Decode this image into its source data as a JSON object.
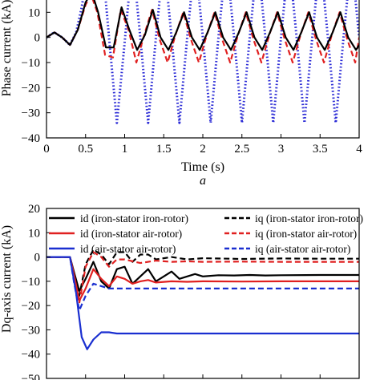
{
  "chart_data": [
    {
      "type": "line",
      "panel_label": "a",
      "xlabel": "Time (s)",
      "ylabel": "Phase current (kA)",
      "xlim": [
        0,
        4
      ],
      "ylim": [
        -40,
        20
      ],
      "x_ticks": [
        "0",
        "0.5",
        "1",
        "1.5",
        "2",
        "2.5",
        "3",
        "3.5",
        "4"
      ],
      "y_ticks": [
        "20",
        "10",
        "0",
        "−10",
        "−20",
        "−30",
        "−40"
      ],
      "legend": "none",
      "grid": false,
      "series": [
        {
          "color": "#2b2bd6",
          "style": "dotted",
          "x": [
            0,
            0.1,
            0.2,
            0.3,
            0.38,
            0.45,
            0.52,
            0.6,
            0.7,
            0.8,
            0.9,
            1.0,
            1.1,
            1.2,
            1.3,
            1.4,
            1.5,
            1.6,
            1.7,
            1.8,
            1.9,
            2.0,
            2.1,
            2.2,
            2.3,
            2.4,
            2.5,
            2.6,
            2.7,
            2.8,
            2.9,
            3.0,
            3.1,
            3.2,
            3.3,
            3.4,
            3.5,
            3.6,
            3.7,
            3.8,
            3.9,
            4.0
          ],
          "values": [
            0,
            2,
            0,
            -3,
            2,
            12,
            25,
            38,
            35,
            0,
            -34,
            -2,
            32,
            0,
            -34,
            0,
            32,
            0,
            -34,
            0,
            32,
            0,
            -34,
            0,
            32,
            0,
            -34,
            0,
            32,
            0,
            -34,
            0,
            32,
            0,
            -34,
            0,
            32,
            0,
            -34,
            0,
            32,
            0
          ]
        },
        {
          "color": "#e02020",
          "style": "dashed",
          "x": [
            0,
            0.1,
            0.2,
            0.3,
            0.4,
            0.5,
            0.57,
            0.65,
            0.75,
            0.85,
            0.95,
            1.05,
            1.15,
            1.25,
            1.35,
            1.45,
            1.55,
            1.65,
            1.75,
            1.85,
            1.95,
            2.05,
            2.15,
            2.25,
            2.35,
            2.45,
            2.55,
            2.65,
            2.75,
            2.85,
            2.95,
            3.05,
            3.15,
            3.25,
            3.35,
            3.45,
            3.55,
            3.65,
            3.75,
            3.85,
            3.95,
            4.0
          ],
          "values": [
            0,
            2,
            0,
            -3,
            3,
            13,
            17,
            10,
            -7,
            -8,
            11,
            3,
            -10,
            1,
            11,
            -1,
            -10,
            1,
            10,
            -1,
            -10,
            1,
            10,
            -1,
            -10,
            1,
            10,
            -1,
            -10,
            1,
            10,
            -1,
            -10,
            1,
            10,
            -1,
            -10,
            1,
            10,
            -1,
            -10,
            0
          ]
        },
        {
          "color": "#000000",
          "style": "solid",
          "x": [
            0,
            0.1,
            0.2,
            0.3,
            0.4,
            0.5,
            0.58,
            0.66,
            0.76,
            0.86,
            0.96,
            1.06,
            1.16,
            1.26,
            1.36,
            1.46,
            1.56,
            1.66,
            1.76,
            1.86,
            1.96,
            2.06,
            2.16,
            2.26,
            2.36,
            2.46,
            2.56,
            2.66,
            2.76,
            2.86,
            2.96,
            3.06,
            3.16,
            3.26,
            3.36,
            3.46,
            3.56,
            3.66,
            3.76,
            3.86,
            3.96,
            4.0
          ],
          "values": [
            0,
            2,
            0,
            -3,
            3,
            14,
            18,
            10,
            -4,
            -4,
            12,
            3,
            -5,
            1,
            11,
            0,
            -5,
            2,
            10,
            0,
            -5,
            2,
            10,
            0,
            -5,
            2,
            10,
            0,
            -5,
            2,
            10,
            0,
            -5,
            2,
            10,
            0,
            -5,
            2,
            10,
            0,
            -5,
            -3
          ]
        }
      ]
    },
    {
      "type": "line",
      "panel_label": "",
      "xlabel": "",
      "ylabel": "Dq-axis current (kA)",
      "xlim": [
        0,
        4
      ],
      "ylim": [
        -50,
        20
      ],
      "y_ticks": [
        "20",
        "10",
        "0",
        "−10",
        "−20",
        "−30",
        "−40",
        "−50"
      ],
      "legend": "top",
      "grid": false,
      "series": [
        {
          "name": "id (iron-stator iron-rotor)",
          "color": "#000000",
          "style": "solid",
          "x": [
            0,
            0.3,
            0.35,
            0.42,
            0.5,
            0.6,
            0.7,
            0.8,
            0.9,
            1.0,
            1.1,
            1.2,
            1.3,
            1.4,
            1.5,
            1.6,
            1.7,
            1.8,
            1.9,
            2.0,
            2.2,
            2.4,
            2.6,
            2.8,
            3.0,
            3.5,
            4.0
          ],
          "values": [
            0,
            0,
            -6,
            -14,
            -9,
            -2,
            -10,
            -13,
            -5,
            -4,
            -11,
            -8,
            -5,
            -10,
            -8,
            -6,
            -9,
            -8,
            -7,
            -8,
            -7.5,
            -7.6,
            -7.4,
            -7.6,
            -7.5,
            -7.4,
            -7.4
          ]
        },
        {
          "name": "iq (iron-stator iron-rotor)",
          "color": "#000000",
          "style": "dashed",
          "x": [
            0,
            0.3,
            0.35,
            0.42,
            0.5,
            0.6,
            0.7,
            0.8,
            0.9,
            1.0,
            1.1,
            1.2,
            1.3,
            1.4,
            1.6,
            1.8,
            2.0,
            2.5,
            3.0,
            3.5,
            4.0
          ],
          "values": [
            0,
            0,
            -8,
            -16,
            -3,
            3,
            1,
            -3,
            2,
            2,
            -2,
            1,
            1,
            -1,
            0,
            -1,
            -0.5,
            -0.8,
            -0.6,
            -0.7,
            -0.7
          ]
        },
        {
          "name": "id (iron-stator air-rotor)",
          "color": "#e02020",
          "style": "solid",
          "x": [
            0,
            0.3,
            0.35,
            0.42,
            0.5,
            0.6,
            0.7,
            0.8,
            0.9,
            1.0,
            1.1,
            1.2,
            1.3,
            1.4,
            1.6,
            1.8,
            2.0,
            2.5,
            3.0,
            3.5,
            4.0
          ],
          "values": [
            0,
            0,
            -7,
            -18,
            -13,
            -5,
            -9,
            -12,
            -8,
            -9,
            -11,
            -10,
            -9.5,
            -10.5,
            -10,
            -10.2,
            -10,
            -10.1,
            -10,
            -10,
            -10
          ]
        },
        {
          "name": "iq (iron-stator air-rotor)",
          "color": "#e02020",
          "style": "dashed",
          "x": [
            0,
            0.3,
            0.35,
            0.42,
            0.5,
            0.6,
            0.7,
            0.8,
            0.9,
            1.0,
            1.2,
            1.4,
            1.6,
            1.8,
            2.0,
            2.5,
            3.0,
            3.5,
            4.0
          ],
          "values": [
            0,
            0,
            -9,
            -19,
            -4,
            2,
            0,
            -4,
            -1,
            -1,
            -2.5,
            -1.5,
            -2,
            -1.8,
            -2,
            -1.9,
            -2,
            -2,
            -2
          ]
        },
        {
          "name": "id (air-stator air-rotor)",
          "color": "#1a2fd0",
          "style": "solid",
          "x": [
            0,
            0.3,
            0.38,
            0.45,
            0.52,
            0.6,
            0.7,
            0.8,
            0.9,
            1.0,
            1.2,
            1.5,
            2.0,
            2.5,
            3.0,
            3.5,
            4.0
          ],
          "values": [
            0,
            0,
            -15,
            -33,
            -38,
            -34,
            -31,
            -31,
            -31.5,
            -31.5,
            -31.5,
            -31.5,
            -31.5,
            -31.5,
            -31.5,
            -31.5,
            -31.5
          ]
        },
        {
          "name": "iq (air-stator air-rotor)",
          "color": "#1a2fd0",
          "style": "dashed",
          "x": [
            0,
            0.3,
            0.35,
            0.42,
            0.5,
            0.6,
            0.7,
            0.8,
            1.0,
            1.5,
            2.0,
            2.5,
            3.0,
            3.5,
            4.0
          ],
          "values": [
            0,
            0,
            -10,
            -22,
            -16,
            -11,
            -12,
            -13,
            -13,
            -13,
            -13,
            -13,
            -13,
            -13,
            -13
          ]
        }
      ]
    }
  ]
}
